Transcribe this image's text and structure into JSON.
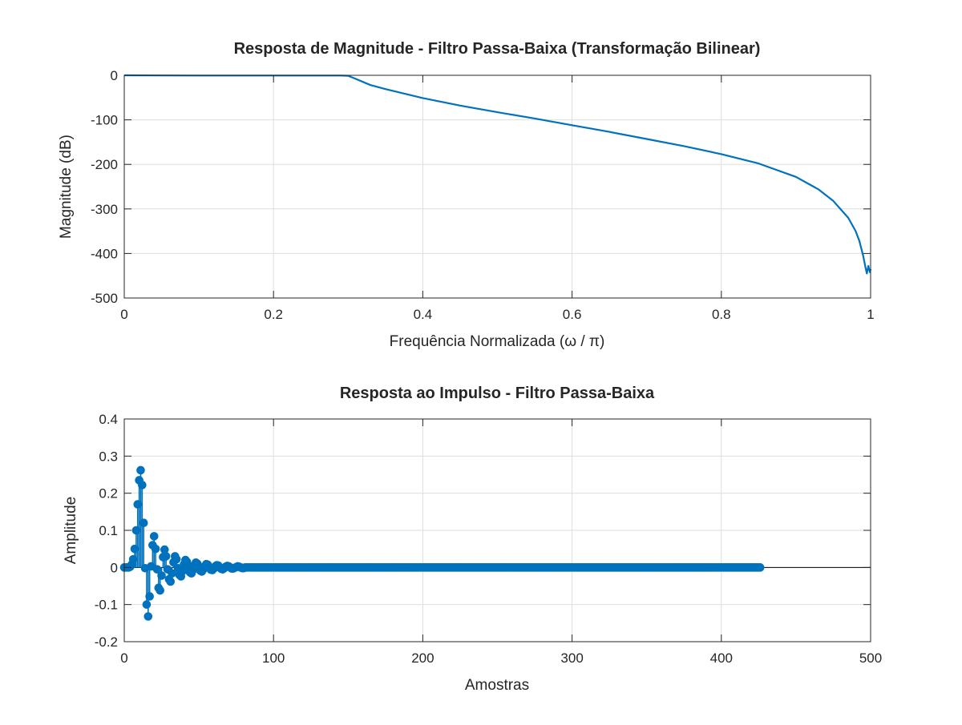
{
  "colors": {
    "series": "#0072BD",
    "axis": "#262626",
    "grid": "#dedede",
    "background": "#ffffff"
  },
  "chart_data": [
    {
      "type": "line",
      "title": "Resposta de Magnitude - Filtro Passa-Baixa (Transformação Bilinear)",
      "xlabel": "Frequência Normalizada (ω / π)",
      "ylabel": "Magnitude (dB)",
      "xlim": [
        0,
        1
      ],
      "ylim": [
        -500,
        0
      ],
      "xticks": [
        0,
        0.2,
        0.4,
        0.6,
        0.8,
        1
      ],
      "xtick_labels": [
        "0",
        "0.2",
        "0.4",
        "0.6",
        "0.8",
        "1"
      ],
      "yticks": [
        0,
        -100,
        -200,
        -300,
        -400,
        -500
      ],
      "ytick_labels": [
        "0",
        "-100",
        "-200",
        "-300",
        "-400",
        "-500"
      ],
      "grid": true,
      "series": [
        {
          "x": [
            0,
            0.05,
            0.1,
            0.15,
            0.2,
            0.25,
            0.29,
            0.3,
            0.31,
            0.32,
            0.33,
            0.35,
            0.38,
            0.4,
            0.45,
            0.5,
            0.55,
            0.6,
            0.65,
            0.7,
            0.75,
            0.8,
            0.85,
            0.9,
            0.93,
            0.95,
            0.97,
            0.98,
            0.985,
            0.99,
            0.993,
            0.995,
            0.997,
            0.999,
            1
          ],
          "y": [
            0,
            -0.3,
            -0.5,
            -0.5,
            -0.5,
            -0.5,
            -0.5,
            -1,
            -8,
            -15,
            -22,
            -31,
            -43,
            -51,
            -68,
            -83,
            -97,
            -112,
            -127,
            -143,
            -159,
            -177,
            -198,
            -228,
            -256,
            -282,
            -320,
            -350,
            -372,
            -405,
            -430,
            -445,
            -428,
            -442,
            -435
          ]
        }
      ]
    },
    {
      "type": "stem",
      "title": "Resposta ao Impulso - Filtro Passa-Baixa",
      "xlabel": "Amostras",
      "ylabel": "Amplitude",
      "xlim": [
        0,
        500
      ],
      "ylim": [
        -0.2,
        0.4
      ],
      "xticks": [
        0,
        100,
        200,
        300,
        400,
        500
      ],
      "xtick_labels": [
        "0",
        "100",
        "200",
        "300",
        "400",
        "500"
      ],
      "yticks": [
        0.4,
        0.3,
        0.2,
        0.1,
        0,
        -0.1,
        -0.2
      ],
      "ytick_labels": [
        "0.4",
        "0.3",
        "0.2",
        "0.1",
        "0",
        "-0.1",
        "-0.2"
      ],
      "grid": true,
      "series": [
        {
          "n_start": 0,
          "n_end": 426,
          "values": [
            0,
            0,
            0,
            0,
            0.002,
            0.008,
            0.022,
            0.05,
            0.1,
            0.17,
            0.235,
            0.262,
            0.222,
            0.12,
            -0.002,
            -0.1,
            -0.132,
            -0.078,
            0.003,
            0.06,
            0.084,
            0.05,
            -0.005,
            -0.055,
            -0.062,
            -0.022,
            0.028,
            0.048,
            0.03,
            -0.005,
            -0.032,
            -0.038,
            -0.016,
            0.014,
            0.03,
            0.022,
            -0.002,
            -0.02,
            -0.024,
            -0.01,
            0.008,
            0.02,
            0.015,
            0,
            -0.013,
            -0.016,
            -0.007,
            0.006,
            0.013,
            0.01,
            0,
            -0.009,
            -0.011,
            -0.005,
            0.004,
            0.009,
            0.007,
            0,
            -0.006,
            -0.007,
            -0.003,
            0.003,
            0.006,
            0.005,
            0,
            -0.004,
            -0.005,
            -0.002,
            0.002,
            0.004,
            0.003,
            0,
            -0.003,
            -0.003,
            -0.001,
            0.001,
            0.003,
            0.002,
            0,
            -0.002,
            -0.002
          ]
        }
      ]
    }
  ]
}
